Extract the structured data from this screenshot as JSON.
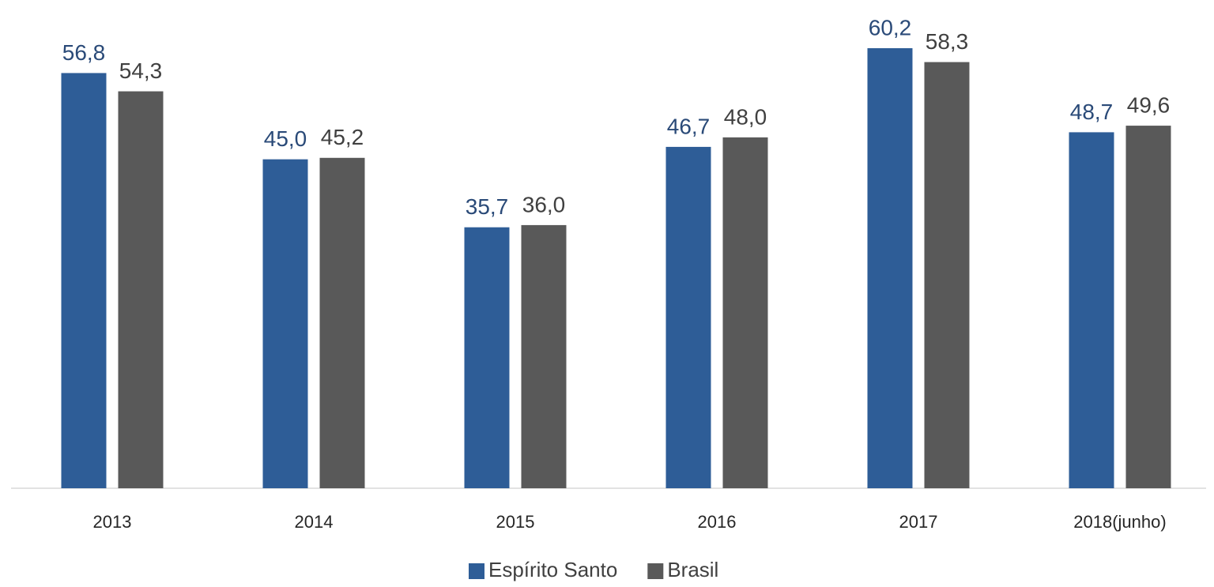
{
  "chart_data": {
    "type": "bar",
    "categories": [
      "2013",
      "2014",
      "2015",
      "2016",
      "2017",
      "2018(junho)"
    ],
    "series": [
      {
        "name": "Espírito Santo",
        "color": "#2e5d97",
        "label_color": "#2a4a78",
        "values": [
          56.8,
          45.0,
          35.7,
          46.7,
          60.2,
          48.7
        ],
        "value_labels": [
          "56,8",
          "45,0",
          "35,7",
          "46,7",
          "60,2",
          "48,7"
        ]
      },
      {
        "name": "Brasil",
        "color": "#595959",
        "label_color": "#404040",
        "values": [
          54.3,
          45.2,
          36.0,
          48.0,
          58.3,
          49.6
        ],
        "value_labels": [
          "54,3",
          "45,2",
          "36,0",
          "48,0",
          "58,3",
          "49,6"
        ]
      }
    ],
    "legend": "bottom"
  }
}
